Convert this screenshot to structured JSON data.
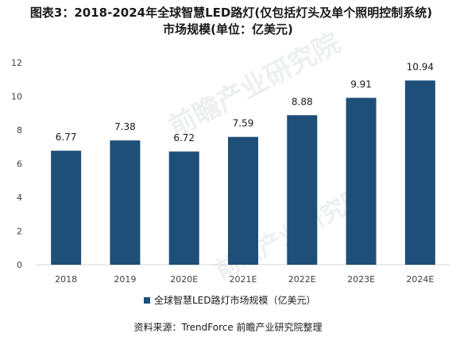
{
  "title": {
    "line1": "图表3：2018-2024年全球智慧LED路灯(仅包括灯头及单个照明控制系统)",
    "line2": "市场规模(单位：亿美元)"
  },
  "watermark_text": "前瞻产业研究院",
  "source": "资料来源：TrendForce 前瞻产业研究院整理",
  "colors": {
    "bar": "#1f4e79",
    "text": "#1a1a1a",
    "axis_text": "#404040",
    "axis_line": "#d9d9d9"
  },
  "chart_data": {
    "type": "bar",
    "categories": [
      "2018",
      "2019",
      "2020E",
      "2021E",
      "2022E",
      "2023E",
      "2024E"
    ],
    "series": [
      {
        "name": "全球智慧LED路灯市场规模（亿美元）",
        "values": [
          6.77,
          7.38,
          6.72,
          7.59,
          8.88,
          9.91,
          10.94
        ]
      }
    ],
    "data_labels": [
      "6.77",
      "7.38",
      "6.72",
      "7.59",
      "8.88",
      "9.91",
      "10.94"
    ],
    "y_ticks": [
      "0",
      "2",
      "4",
      "6",
      "8",
      "10",
      "12"
    ],
    "ylim": [
      0,
      12
    ],
    "grid": false,
    "legend_position": "bottom"
  }
}
